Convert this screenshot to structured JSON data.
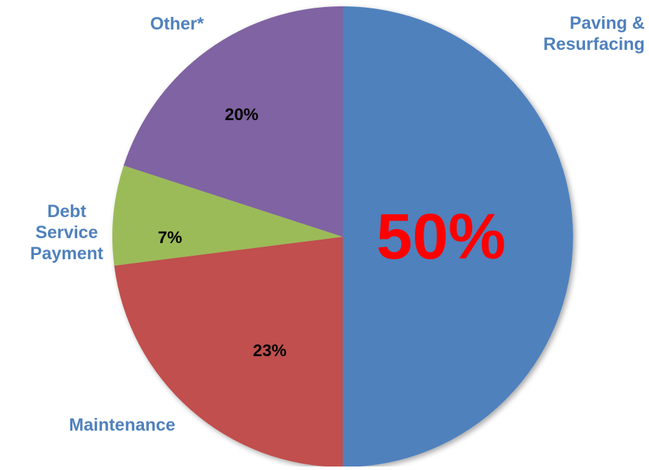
{
  "chart_data": {
    "type": "pie",
    "title": "",
    "slices": [
      {
        "label": "Paving &\nResurfacing",
        "value": 50,
        "value_label": "50%",
        "color": "#4f81bd",
        "value_label_color": "#ff0000"
      },
      {
        "label": "Maintenance",
        "value": 23,
        "value_label": "23%",
        "color": "#c0504d",
        "value_label_color": "#000000"
      },
      {
        "label": "Debt\nService\nPayment",
        "value": 7,
        "value_label": "7%",
        "color": "#9bbb59",
        "value_label_color": "#000000"
      },
      {
        "label": "Other*",
        "value": 20,
        "value_label": "20%",
        "color": "#8064a2",
        "value_label_color": "#000000"
      }
    ],
    "start_angle": "12 o'clock",
    "direction": "clockwise",
    "legend": "none",
    "label_color": "#4f81bd"
  }
}
